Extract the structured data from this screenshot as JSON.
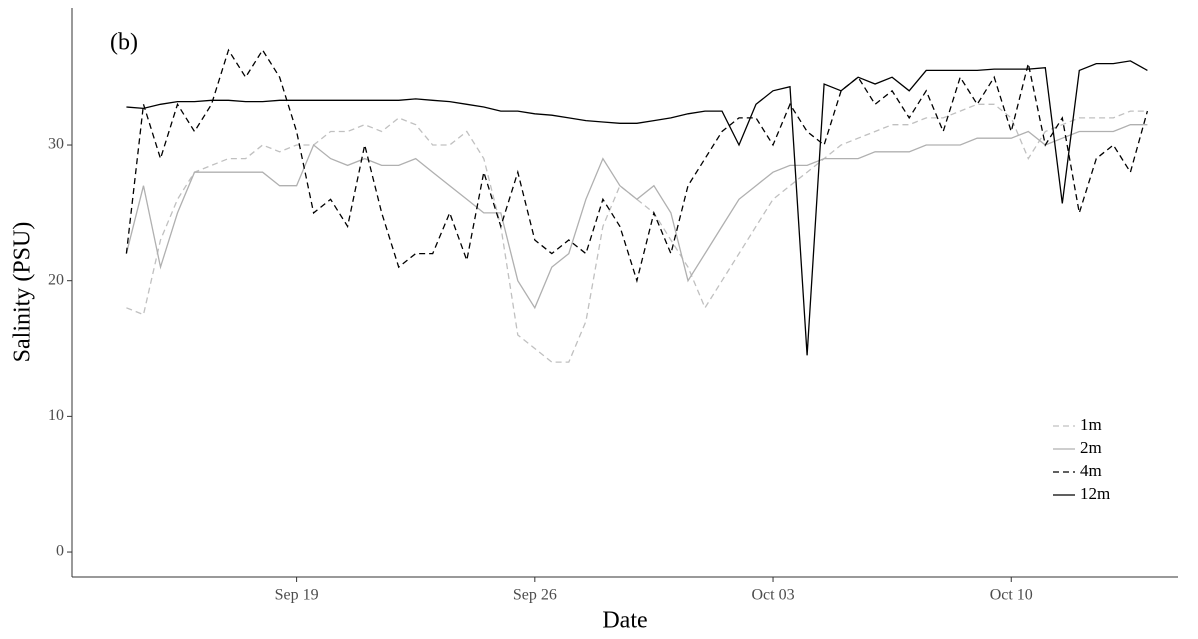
{
  "chart_data": {
    "type": "line",
    "annotation": "(b)",
    "xlabel": "Date",
    "ylabel": "Salinity (PSU)",
    "x": [
      14,
      14.5,
      15,
      15.5,
      16,
      16.5,
      17,
      17.5,
      18,
      18.5,
      19,
      19.5,
      20,
      20.5,
      21,
      21.5,
      22,
      22.5,
      23,
      23.5,
      24,
      24.5,
      25,
      25.5,
      26,
      26.5,
      27,
      27.5,
      28,
      28.5,
      29,
      29.5,
      30,
      30.5,
      31,
      31.5,
      32,
      32.5,
      33,
      33.5,
      34,
      34.5,
      35,
      35.5,
      36,
      36.5,
      37,
      37.5,
      38,
      38.5,
      39,
      39.5,
      40,
      40.5,
      41,
      41.5,
      42,
      42.5,
      43,
      43.5,
      44
    ],
    "series": [
      {
        "name": "1m",
        "color": "#c0c0c0",
        "dashed": true,
        "values": [
          18,
          17.5,
          23,
          26,
          28,
          28.5,
          29,
          29,
          30,
          29.5,
          30,
          30,
          31,
          31,
          31.5,
          31,
          32,
          31.5,
          30,
          30,
          31,
          29,
          24,
          16,
          15,
          14,
          14,
          17,
          24,
          27,
          26,
          25,
          23,
          21,
          18,
          20,
          22,
          24,
          26,
          27,
          28,
          29,
          30,
          30.5,
          31,
          31.5,
          31.5,
          32,
          32,
          32.5,
          33,
          33,
          32,
          29,
          31,
          31.5,
          32,
          32,
          32,
          32.5,
          32.5
        ]
      },
      {
        "name": "2m",
        "color": "#b0b0b0",
        "dashed": false,
        "values": [
          22,
          27,
          21,
          25,
          28,
          28,
          28,
          28,
          28,
          27,
          27,
          30,
          29,
          28.5,
          29,
          28.5,
          28.5,
          29,
          28,
          27,
          26,
          25,
          25,
          20,
          18,
          21,
          22,
          26,
          29,
          27,
          26,
          27,
          25,
          20,
          22,
          24,
          26,
          27,
          28,
          28.5,
          28.5,
          29,
          29,
          29,
          29.5,
          29.5,
          29.5,
          30,
          30,
          30,
          30.5,
          30.5,
          30.5,
          31,
          30,
          30.5,
          31,
          31,
          31,
          31.5,
          31.5
        ]
      },
      {
        "name": "4m",
        "color": "#000000",
        "dashed": true,
        "values": [
          22,
          33,
          29,
          33,
          31,
          33,
          37,
          35,
          37,
          35,
          31,
          25,
          26,
          24,
          30,
          25,
          21,
          22,
          22,
          25,
          21.5,
          28,
          24,
          28,
          23,
          22,
          23,
          22,
          26,
          24,
          20,
          25,
          22,
          27,
          29,
          31,
          32,
          32,
          30,
          33,
          31,
          30,
          34,
          35,
          33,
          34,
          32,
          34,
          31,
          35,
          33,
          35,
          31,
          36,
          30,
          32,
          25,
          29,
          30,
          28,
          32.5
        ]
      },
      {
        "name": "12m",
        "color": "#000000",
        "dashed": false,
        "values": [
          32.8,
          32.7,
          33,
          33.2,
          33.2,
          33.3,
          33.3,
          33.2,
          33.2,
          33.3,
          33.3,
          33.3,
          33.3,
          33.3,
          33.3,
          33.3,
          33.3,
          33.4,
          33.3,
          33.2,
          33,
          32.8,
          32.5,
          32.5,
          32.3,
          32.2,
          32,
          31.8,
          31.7,
          31.6,
          31.6,
          31.8,
          32,
          32.3,
          32.5,
          32.5,
          30,
          33,
          34,
          34.3,
          14.5,
          34.5,
          34,
          35,
          34.5,
          35,
          34,
          35.5,
          35.5,
          35.5,
          35.5,
          35.6,
          35.6,
          35.6,
          35.7,
          25.7,
          35.5,
          36,
          36,
          36.2,
          35.5
        ]
      }
    ],
    "xlim": [
      12.4,
      44.9
    ],
    "xticks": [
      {
        "value": 19,
        "label": "Sep 19"
      },
      {
        "value": 26,
        "label": "Sep 26"
      },
      {
        "value": 33,
        "label": "Oct 03"
      },
      {
        "value": 40,
        "label": "Oct 10"
      }
    ],
    "ylim": [
      -1.84,
      40.1
    ],
    "yticks": [
      0,
      10,
      20,
      30
    ],
    "grid": false,
    "legend": "bottom-right"
  }
}
